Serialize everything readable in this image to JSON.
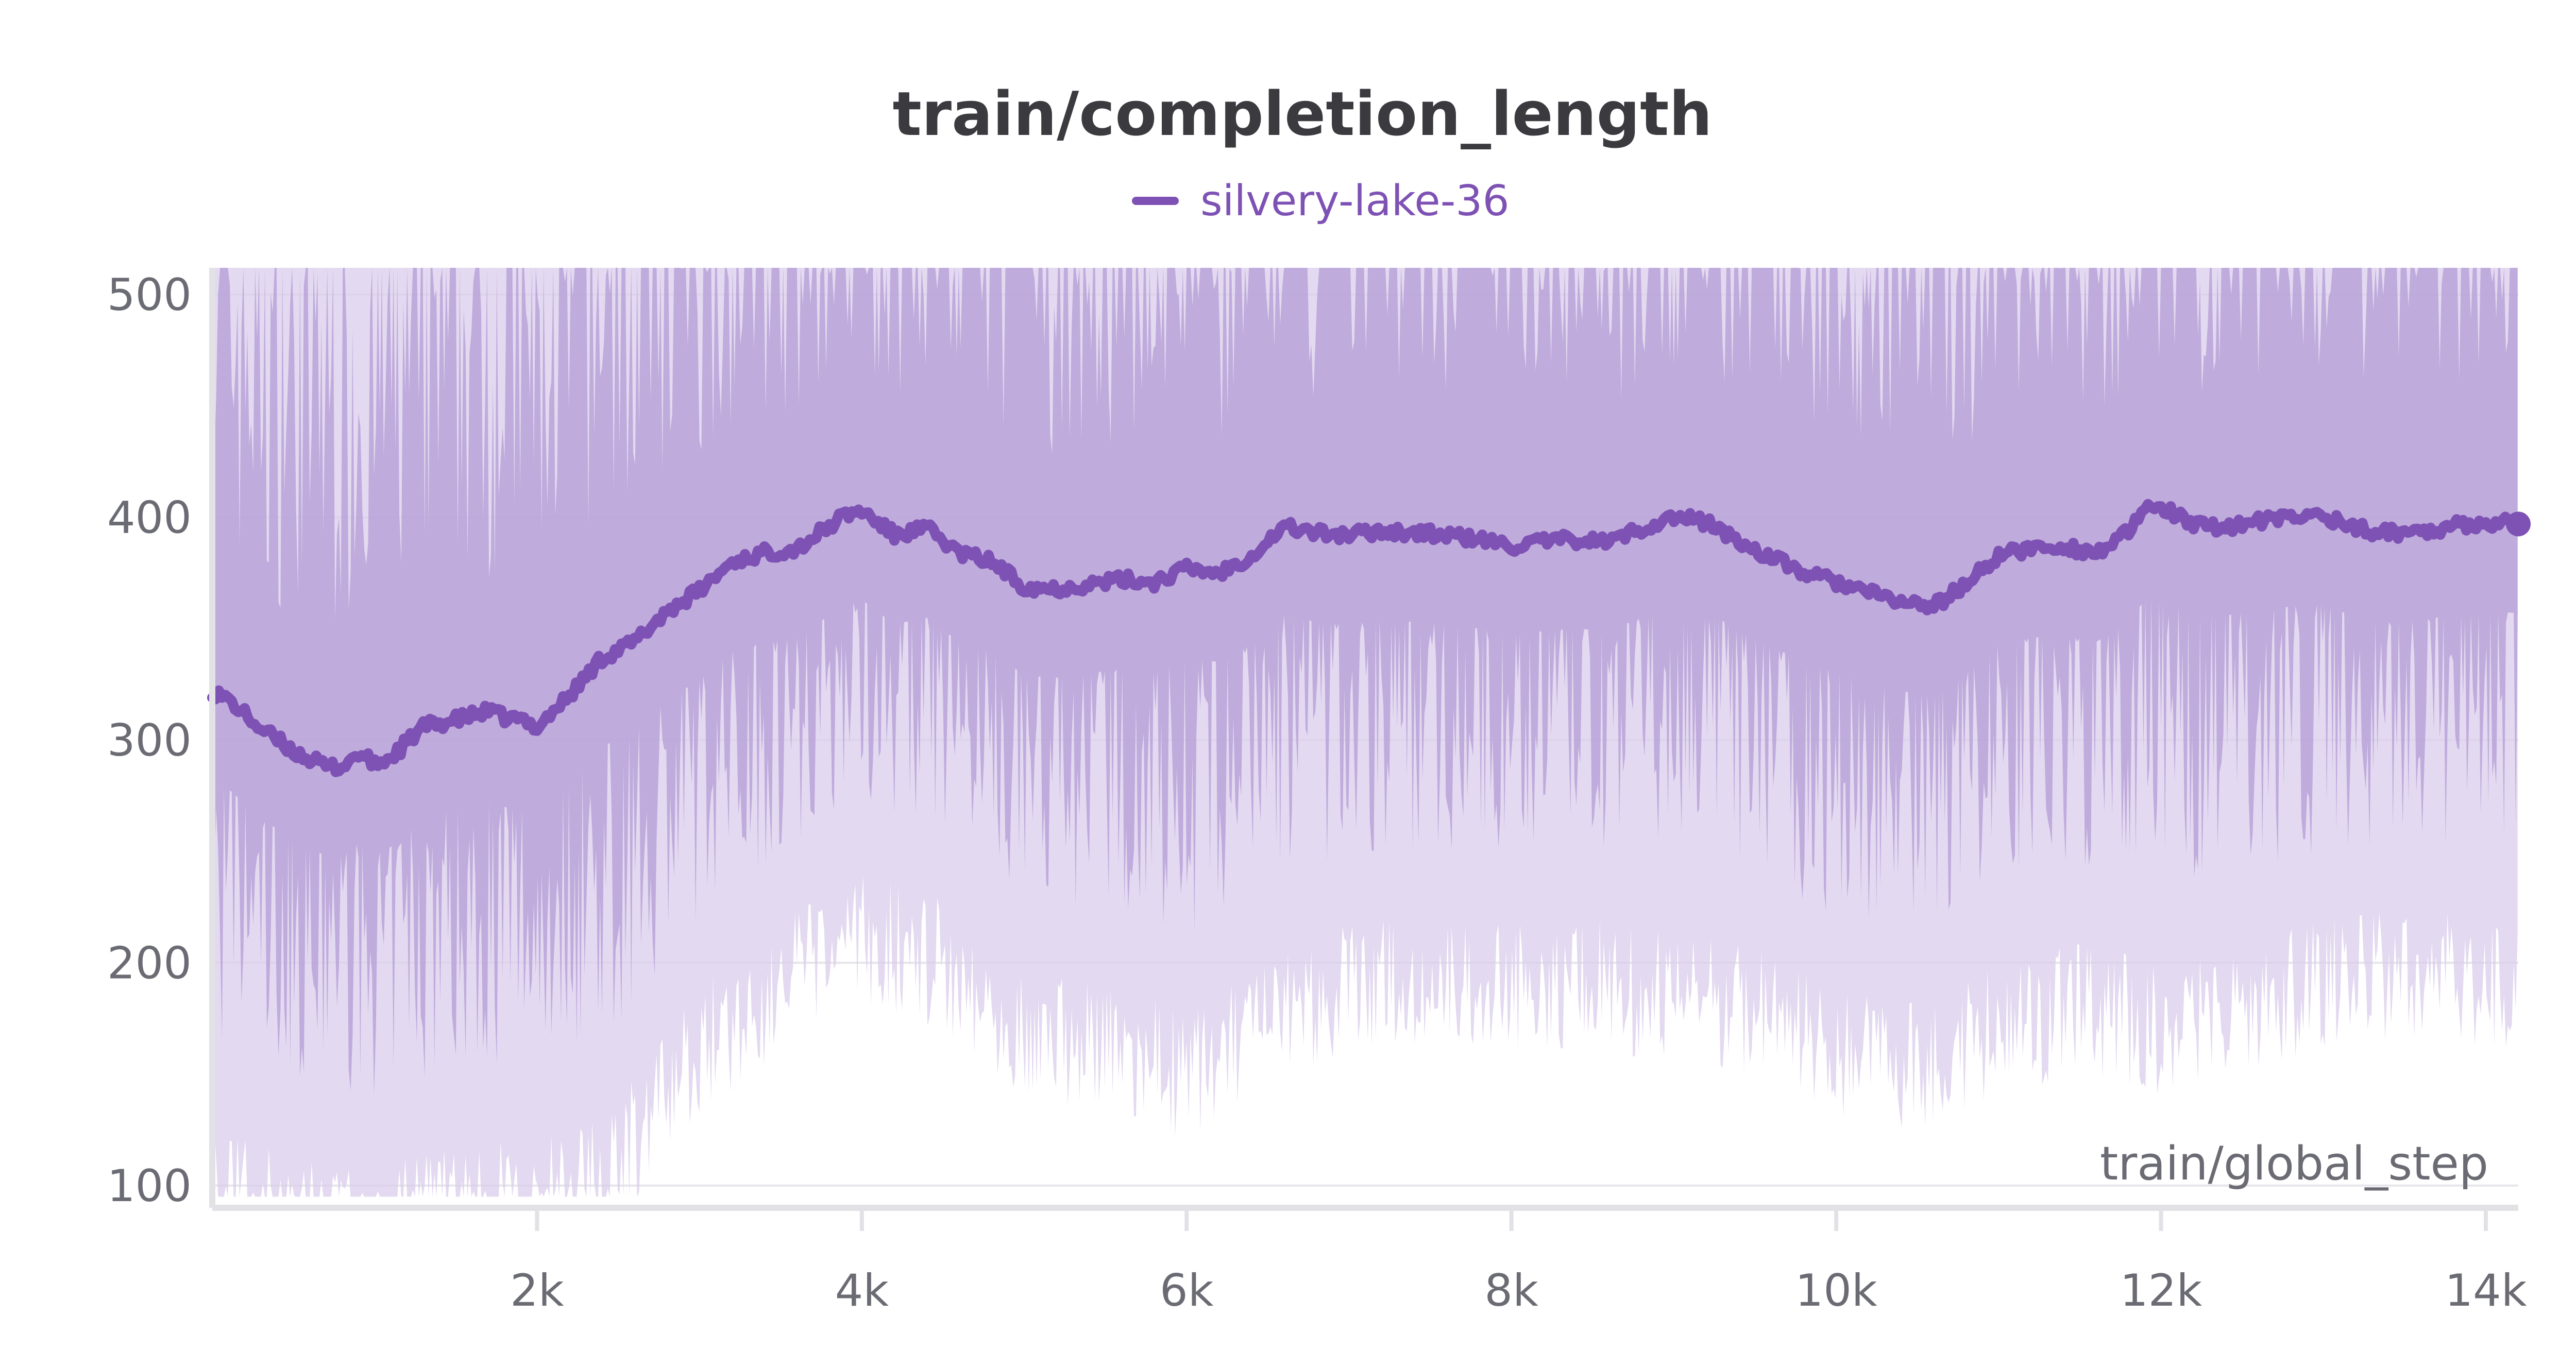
{
  "chart_data": {
    "type": "line",
    "title": "train/completion_length",
    "xlabel": "train/global_step",
    "ylabel": "",
    "xlim": [
      0,
      14200
    ],
    "ylim": [
      90,
      512
    ],
    "x_ticks": [
      {
        "value": 2000,
        "label": "2k"
      },
      {
        "value": 4000,
        "label": "4k"
      },
      {
        "value": 6000,
        "label": "6k"
      },
      {
        "value": 8000,
        "label": "8k"
      },
      {
        "value": 10000,
        "label": "10k"
      },
      {
        "value": 12000,
        "label": "12k"
      },
      {
        "value": 14000,
        "label": "14k"
      }
    ],
    "y_ticks": [
      {
        "value": 100,
        "label": "100"
      },
      {
        "value": 200,
        "label": "200"
      },
      {
        "value": 300,
        "label": "300"
      },
      {
        "value": 400,
        "label": "400"
      },
      {
        "value": 500,
        "label": "500"
      }
    ],
    "grid": true,
    "legend": {
      "position": "top-center"
    },
    "colors": {
      "line": "#7e52b4",
      "band": "#b8a2d8",
      "band_light": "#d9cceb"
    },
    "series": [
      {
        "name": "silvery-lake-36",
        "smoothed": {
          "x": [
            0,
            100,
            300,
            500,
            700,
            800,
            900,
            1000,
            1100,
            1300,
            1500,
            1700,
            1800,
            1900,
            2000,
            2200,
            2400,
            2600,
            2800,
            3000,
            3200,
            3400,
            3600,
            3800,
            3900,
            4000,
            4200,
            4400,
            4600,
            4800,
            5000,
            5200,
            5400,
            5600,
            5800,
            6000,
            6200,
            6400,
            6600,
            6800,
            7000,
            7200,
            7400,
            7600,
            7800,
            8000,
            8200,
            8400,
            8600,
            8800,
            9000,
            9200,
            9400,
            9600,
            9800,
            10000,
            10200,
            10400,
            10600,
            10800,
            11000,
            11200,
            11400,
            11600,
            11800,
            11900,
            12000,
            12200,
            12400,
            12600,
            12800,
            13000,
            13200,
            13400,
            13600,
            13800,
            14000,
            14200
          ],
          "y": [
            322,
            318,
            305,
            295,
            288,
            288,
            294,
            289,
            292,
            306,
            309,
            313,
            310,
            309,
            306,
            320,
            337,
            344,
            358,
            367,
            380,
            384,
            386,
            396,
            401,
            403,
            392,
            395,
            384,
            380,
            369,
            368,
            370,
            372,
            371,
            377,
            375,
            383,
            396,
            393,
            392,
            394,
            393,
            392,
            390,
            387,
            389,
            390,
            389,
            395,
            400,
            398,
            389,
            382,
            375,
            371,
            366,
            362,
            360,
            370,
            383,
            386,
            387,
            384,
            393,
            403,
            405,
            396,
            396,
            398,
            400,
            401,
            395,
            393,
            394,
            396,
            398,
            397
          ]
        },
        "band_upper": {
          "x": [
            0,
            1000,
            2000,
            3000,
            4000,
            6000,
            8000,
            10000,
            12000,
            14200
          ],
          "y": [
            510,
            510,
            510,
            510,
            510,
            510,
            510,
            510,
            510,
            510
          ]
        },
        "band_lower": {
          "x": [
            0,
            500,
            1000,
            1500,
            2000,
            2500,
            3000,
            3500,
            4000,
            4500,
            5000,
            5500,
            6000,
            6500,
            7000,
            7500,
            8000,
            8500,
            9000,
            9500,
            10000,
            10500,
            11000,
            11500,
            12000,
            12500,
            13000,
            13500,
            14000,
            14200
          ],
          "y": [
            160,
            145,
            140,
            150,
            150,
            170,
            220,
            250,
            270,
            260,
            230,
            220,
            210,
            230,
            250,
            250,
            250,
            250,
            245,
            240,
            220,
            215,
            230,
            240,
            230,
            240,
            250,
            255,
            250,
            250
          ]
        },
        "end_point": {
          "x": 14200,
          "y": 397
        }
      }
    ]
  }
}
